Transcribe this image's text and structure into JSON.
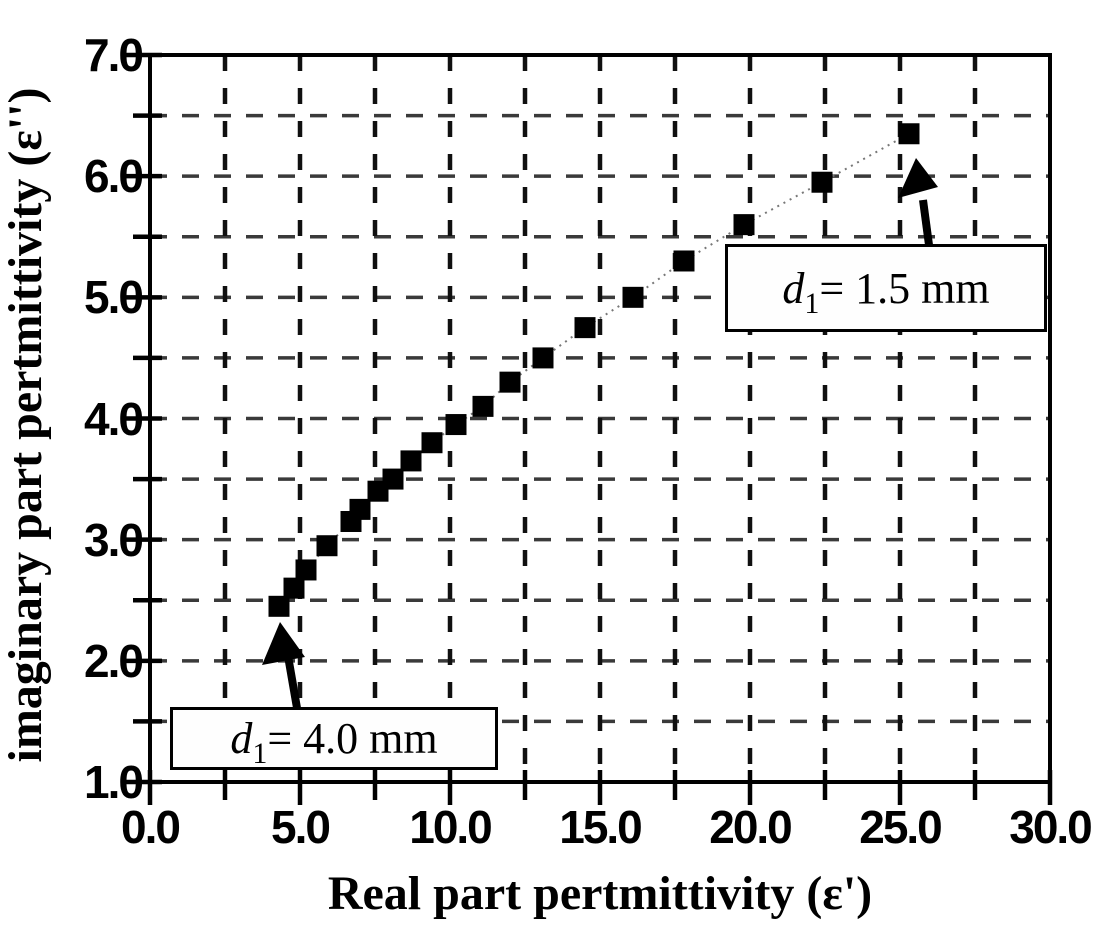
{
  "figure": {
    "background_color": "#ffffff",
    "ink_color": "#000000"
  },
  "chart_data": {
    "type": "scatter",
    "title": "",
    "xlabel": "Real part pertmittivity (ε')",
    "ylabel": "imaginary part pertmittivity (ε'')",
    "xlim": [
      0.0,
      30.0
    ],
    "ylim": [
      1.0,
      7.0
    ],
    "grid": true,
    "grid_style": "dashed",
    "legend_position": "none",
    "x_ticks": {
      "values": [
        0,
        5,
        10,
        15,
        20,
        25,
        30
      ],
      "labels": [
        "0.0",
        "5.0",
        "10.0",
        "15.0",
        "20.0",
        "25.0",
        "30.0"
      ],
      "minor_step": 2.5
    },
    "y_ticks": {
      "values": [
        1,
        2,
        3,
        4,
        5,
        6,
        7
      ],
      "labels": [
        "1.0",
        "2.0",
        "3.0",
        "4.0",
        "5.0",
        "6.0",
        "7.0"
      ],
      "minor_step": 0.5
    },
    "x_grid_values": [
      2.5,
      5,
      7.5,
      10,
      12.5,
      15,
      17.5,
      20,
      22.5,
      25,
      27.5
    ],
    "y_grid_values": [
      1.5,
      2,
      2.5,
      3,
      3.5,
      4,
      4.5,
      5,
      5.5,
      6,
      6.5
    ],
    "series": [
      {
        "marker": "filled-square",
        "marker_color": "#000000",
        "line": "dotted",
        "points": [
          [
            4.3,
            2.45
          ],
          [
            4.8,
            2.6
          ],
          [
            5.2,
            2.75
          ],
          [
            5.9,
            2.95
          ],
          [
            6.7,
            3.15
          ],
          [
            7.0,
            3.25
          ],
          [
            7.6,
            3.4
          ],
          [
            8.1,
            3.5
          ],
          [
            8.7,
            3.65
          ],
          [
            9.4,
            3.8
          ],
          [
            10.2,
            3.95
          ],
          [
            11.1,
            4.1
          ],
          [
            12.0,
            4.3
          ],
          [
            13.1,
            4.5
          ],
          [
            14.5,
            4.75
          ],
          [
            16.1,
            5.0
          ],
          [
            17.8,
            5.3
          ],
          [
            19.8,
            5.6
          ],
          [
            22.4,
            5.95
          ],
          [
            25.3,
            6.35
          ]
        ]
      }
    ],
    "annotations": [
      {
        "var": "d",
        "sub": "1",
        "rest": "= 4.0 mm",
        "points_to": [
          4.3,
          2.45
        ]
      },
      {
        "var": "d",
        "sub": "1",
        "rest": "= 1.5 mm",
        "points_to": [
          25.3,
          6.35
        ]
      }
    ]
  }
}
